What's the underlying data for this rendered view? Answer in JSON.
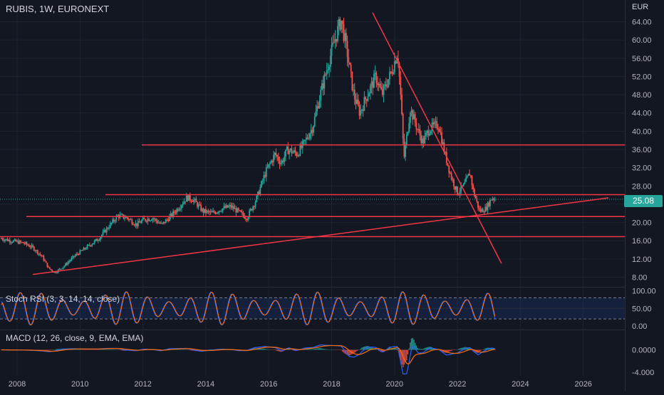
{
  "header": {
    "symbol_label": "RUBIS, 1W, EURONEXT",
    "currency": "EUR"
  },
  "price_badge": {
    "value": "25.08",
    "color": "#26a69a"
  },
  "colors": {
    "background": "#131722",
    "up": "#26a69a",
    "down": "#ef5350",
    "trendline": "#f23645",
    "k_line": "#2962ff",
    "d_line": "#ff6d00",
    "macd_line": "#2962ff",
    "signal_line": "#ff6d00"
  },
  "indicators": {
    "stoch_rsi_label": "Stoch RSI (3, 3, 14, 14, close)",
    "macd_label": "MACD (12, 26, close, 9, EMA, EMA)"
  },
  "chart_data": [
    {
      "type": "candlestick",
      "title": "RUBIS, 1W, EURONEXT",
      "ylabel": "EUR",
      "x_ticks": [
        "2008",
        "2010",
        "2012",
        "2014",
        "2016",
        "2018",
        "2020",
        "2022",
        "2024",
        "2026"
      ],
      "y_ticks": [
        "8.00",
        "12.00",
        "16.00",
        "20.00",
        "24.00",
        "28.00",
        "32.00",
        "36.00",
        "40.00",
        "44.00",
        "48.00",
        "52.00",
        "56.00",
        "60.00",
        "64.00"
      ],
      "ylim": [
        6.0,
        67.0
      ],
      "last_price": 25.08,
      "approx_close_series": [
        [
          2007.5,
          16.5
        ],
        [
          2007.8,
          16.0
        ],
        [
          2008.2,
          15.5
        ],
        [
          2008.5,
          14.5
        ],
        [
          2008.8,
          12.5
        ],
        [
          2009.0,
          10.0
        ],
        [
          2009.2,
          9.0
        ],
        [
          2009.5,
          10.5
        ],
        [
          2009.8,
          12.5
        ],
        [
          2010.0,
          13.5
        ],
        [
          2010.3,
          15.0
        ],
        [
          2010.6,
          16.5
        ],
        [
          2010.9,
          19.0
        ],
        [
          2011.2,
          21.5
        ],
        [
          2011.5,
          21.0
        ],
        [
          2011.8,
          19.5
        ],
        [
          2012.0,
          20.5
        ],
        [
          2012.3,
          21.0
        ],
        [
          2012.6,
          19.5
        ],
        [
          2012.9,
          21.5
        ],
        [
          2013.1,
          23.0
        ],
        [
          2013.4,
          25.5
        ],
        [
          2013.6,
          25.0
        ],
        [
          2013.9,
          22.5
        ],
        [
          2014.2,
          22.0
        ],
        [
          2014.5,
          23.0
        ],
        [
          2014.8,
          23.5
        ],
        [
          2015.1,
          22.0
        ],
        [
          2015.3,
          21.0
        ],
        [
          2015.6,
          25.0
        ],
        [
          2015.9,
          31.0
        ],
        [
          2016.2,
          35.0
        ],
        [
          2016.4,
          33.0
        ],
        [
          2016.6,
          36.0
        ],
        [
          2016.9,
          35.0
        ],
        [
          2017.1,
          37.0
        ],
        [
          2017.4,
          41.0
        ],
        [
          2017.6,
          47.0
        ],
        [
          2017.9,
          55.0
        ],
        [
          2018.1,
          60.0
        ],
        [
          2018.3,
          64.5
        ],
        [
          2018.5,
          57.0
        ],
        [
          2018.7,
          48.0
        ],
        [
          2018.9,
          44.0
        ],
        [
          2019.1,
          47.5
        ],
        [
          2019.4,
          52.0
        ],
        [
          2019.6,
          48.0
        ],
        [
          2019.9,
          53.0
        ],
        [
          2020.1,
          57.5
        ],
        [
          2020.2,
          47.0
        ],
        [
          2020.3,
          34.0
        ],
        [
          2020.5,
          45.0
        ],
        [
          2020.7,
          41.0
        ],
        [
          2020.9,
          37.5
        ],
        [
          2021.1,
          40.5
        ],
        [
          2021.4,
          41.5
        ],
        [
          2021.6,
          35.0
        ],
        [
          2021.8,
          30.0
        ],
        [
          2022.0,
          26.5
        ],
        [
          2022.2,
          28.0
        ],
        [
          2022.4,
          31.0
        ],
        [
          2022.5,
          27.0
        ],
        [
          2022.7,
          22.5
        ],
        [
          2022.9,
          23.0
        ],
        [
          2023.1,
          25.5
        ],
        [
          2023.2,
          25.08
        ]
      ],
      "support_resistance_levels": [
        37.0,
        26.1,
        21.3,
        16.9
      ],
      "rising_trendline": [
        [
          2008.5,
          8.6
        ],
        [
          2026.8,
          25.4
        ]
      ],
      "falling_trendline": [
        [
          2019.3,
          66.0
        ],
        [
          2023.4,
          11.0
        ]
      ]
    },
    {
      "type": "line",
      "title": "Stoch RSI (3, 3, 14, 14, close)",
      "y_ticks": [
        "100.00",
        "50.00",
        "0.00"
      ],
      "ylim": [
        0,
        100
      ],
      "bands": [
        80,
        20
      ],
      "series": [
        {
          "values": []
        },
        {
          "values": []
        }
      ]
    },
    {
      "type": "bar",
      "title": "MACD (12, 26, close, 9, EMA, EMA)",
      "y_ticks": [
        "0.0000",
        "-4.000"
      ],
      "ylim": [
        -4.6,
        2.3
      ]
    }
  ]
}
